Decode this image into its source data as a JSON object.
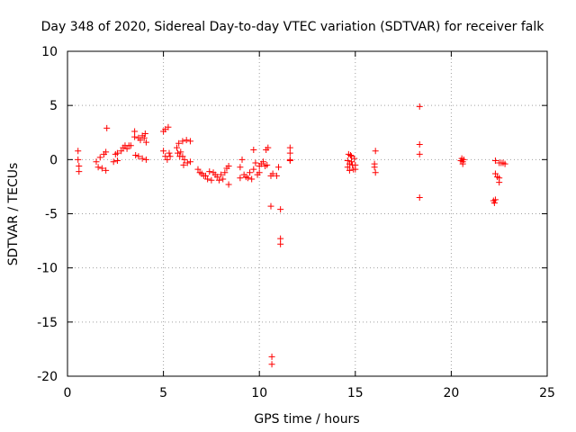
{
  "chart_data": {
    "type": "scatter",
    "title": "Day 348 of 2020, Sidereal Day-to-day VTEC variation (SDTVAR) for receiver falk",
    "xlabel": "GPS time / hours",
    "ylabel": "SDTVAR / TECUs",
    "xlim": [
      0,
      25
    ],
    "ylim": [
      -20,
      10
    ],
    "xticks": [
      0,
      5,
      10,
      15,
      20,
      25
    ],
    "yticks": [
      -20,
      -15,
      -10,
      -5,
      0,
      5,
      10
    ],
    "grid": true,
    "marker": "+",
    "color": "#ff0000",
    "series": [
      {
        "name": "SDTVAR",
        "points": [
          [
            0.55,
            0.8
          ],
          [
            0.55,
            0.0
          ],
          [
            0.6,
            -0.6
          ],
          [
            0.6,
            -1.1
          ],
          [
            1.5,
            -0.2
          ],
          [
            1.6,
            -0.7
          ],
          [
            1.7,
            0.2
          ],
          [
            1.8,
            -0.8
          ],
          [
            1.9,
            0.5
          ],
          [
            2.0,
            0.7
          ],
          [
            2.0,
            -1.0
          ],
          [
            2.05,
            2.9
          ],
          [
            2.4,
            -0.2
          ],
          [
            2.5,
            0.5
          ],
          [
            2.6,
            -0.1
          ],
          [
            2.6,
            0.6
          ],
          [
            2.8,
            0.8
          ],
          [
            2.9,
            1.1
          ],
          [
            3.0,
            1.3
          ],
          [
            3.1,
            1.0
          ],
          [
            3.2,
            1.3
          ],
          [
            3.3,
            1.3
          ],
          [
            3.5,
            2.6
          ],
          [
            3.5,
            2.1
          ],
          [
            3.55,
            0.4
          ],
          [
            3.7,
            2.0
          ],
          [
            3.7,
            0.3
          ],
          [
            3.8,
            1.8
          ],
          [
            3.9,
            2.2
          ],
          [
            3.9,
            0.1
          ],
          [
            4.0,
            2.0
          ],
          [
            4.05,
            2.4
          ],
          [
            4.1,
            0.0
          ],
          [
            4.1,
            1.6
          ],
          [
            5.0,
            2.6
          ],
          [
            5.0,
            0.8
          ],
          [
            5.1,
            2.8
          ],
          [
            5.1,
            0.3
          ],
          [
            5.2,
            0.0
          ],
          [
            5.25,
            3.0
          ],
          [
            5.3,
            0.6
          ],
          [
            5.35,
            0.3
          ],
          [
            5.7,
            1.1
          ],
          [
            5.75,
            0.6
          ],
          [
            5.8,
            1.5
          ],
          [
            5.85,
            0.3
          ],
          [
            5.9,
            0.7
          ],
          [
            6.0,
            1.7
          ],
          [
            6.0,
            0.3
          ],
          [
            6.05,
            -0.5
          ],
          [
            6.1,
            0.0
          ],
          [
            6.2,
            1.8
          ],
          [
            6.25,
            -0.3
          ],
          [
            6.4,
            1.7
          ],
          [
            6.4,
            -0.2
          ],
          [
            6.8,
            -0.9
          ],
          [
            6.9,
            -1.2
          ],
          [
            7.0,
            -1.3
          ],
          [
            7.1,
            -1.5
          ],
          [
            7.2,
            -1.5
          ],
          [
            7.3,
            -1.8
          ],
          [
            7.4,
            -1.1
          ],
          [
            7.5,
            -1.9
          ],
          [
            7.6,
            -1.2
          ],
          [
            7.7,
            -1.4
          ],
          [
            7.8,
            -1.6
          ],
          [
            7.9,
            -1.9
          ],
          [
            8.0,
            -1.4
          ],
          [
            8.1,
            -1.8
          ],
          [
            8.2,
            -1.2
          ],
          [
            8.3,
            -0.8
          ],
          [
            8.4,
            -2.3
          ],
          [
            8.4,
            -0.6
          ],
          [
            9.0,
            -0.7
          ],
          [
            9.0,
            -1.7
          ],
          [
            9.1,
            0.0
          ],
          [
            9.2,
            -1.4
          ],
          [
            9.3,
            -1.6
          ],
          [
            9.4,
            -1.7
          ],
          [
            9.5,
            -1.2
          ],
          [
            9.6,
            -1.8
          ],
          [
            9.7,
            -0.9
          ],
          [
            9.7,
            0.9
          ],
          [
            9.8,
            -0.3
          ],
          [
            9.9,
            -1.4
          ],
          [
            10.0,
            -0.6
          ],
          [
            10.0,
            -1.2
          ],
          [
            10.1,
            -0.4
          ],
          [
            10.2,
            -0.2
          ],
          [
            10.3,
            -0.6
          ],
          [
            10.35,
            0.9
          ],
          [
            10.4,
            -0.5
          ],
          [
            10.45,
            1.1
          ],
          [
            10.6,
            -1.5
          ],
          [
            10.6,
            -4.3
          ],
          [
            10.7,
            -1.3
          ],
          [
            10.65,
            -18.2
          ],
          [
            10.65,
            -18.9
          ],
          [
            10.9,
            -1.5
          ],
          [
            11.0,
            -0.7
          ],
          [
            11.1,
            -4.6
          ],
          [
            11.1,
            -7.3
          ],
          [
            11.1,
            -7.8
          ],
          [
            11.6,
            0.0
          ],
          [
            11.6,
            -0.1
          ],
          [
            11.6,
            0.6
          ],
          [
            11.6,
            1.1
          ],
          [
            14.6,
            -0.1
          ],
          [
            14.6,
            -0.7
          ],
          [
            14.65,
            0.5
          ],
          [
            14.7,
            -0.4
          ],
          [
            14.7,
            -1.0
          ],
          [
            14.75,
            0.4
          ],
          [
            14.8,
            -0.2
          ],
          [
            14.8,
            0.3
          ],
          [
            14.85,
            -0.5
          ],
          [
            14.9,
            -0.9
          ],
          [
            14.95,
            0.1
          ],
          [
            15.0,
            -0.5
          ],
          [
            15.0,
            -0.9
          ],
          [
            16.0,
            -0.4
          ],
          [
            16.0,
            -0.7
          ],
          [
            16.05,
            0.8
          ],
          [
            16.05,
            -1.2
          ],
          [
            18.35,
            4.9
          ],
          [
            18.35,
            1.4
          ],
          [
            18.35,
            0.5
          ],
          [
            18.35,
            -3.5
          ],
          [
            20.5,
            -0.1
          ],
          [
            20.55,
            0.1
          ],
          [
            20.6,
            -0.2
          ],
          [
            20.6,
            -0.4
          ],
          [
            20.65,
            0.0
          ],
          [
            22.2,
            -3.8
          ],
          [
            22.25,
            -4.0
          ],
          [
            22.3,
            -1.3
          ],
          [
            22.3,
            -3.7
          ],
          [
            22.3,
            -0.1
          ],
          [
            22.4,
            -1.6
          ],
          [
            22.5,
            -2.1
          ],
          [
            22.5,
            -1.7
          ],
          [
            22.5,
            -0.3
          ],
          [
            22.6,
            -0.3
          ],
          [
            22.7,
            -0.3
          ],
          [
            22.8,
            -0.4
          ]
        ]
      }
    ]
  }
}
